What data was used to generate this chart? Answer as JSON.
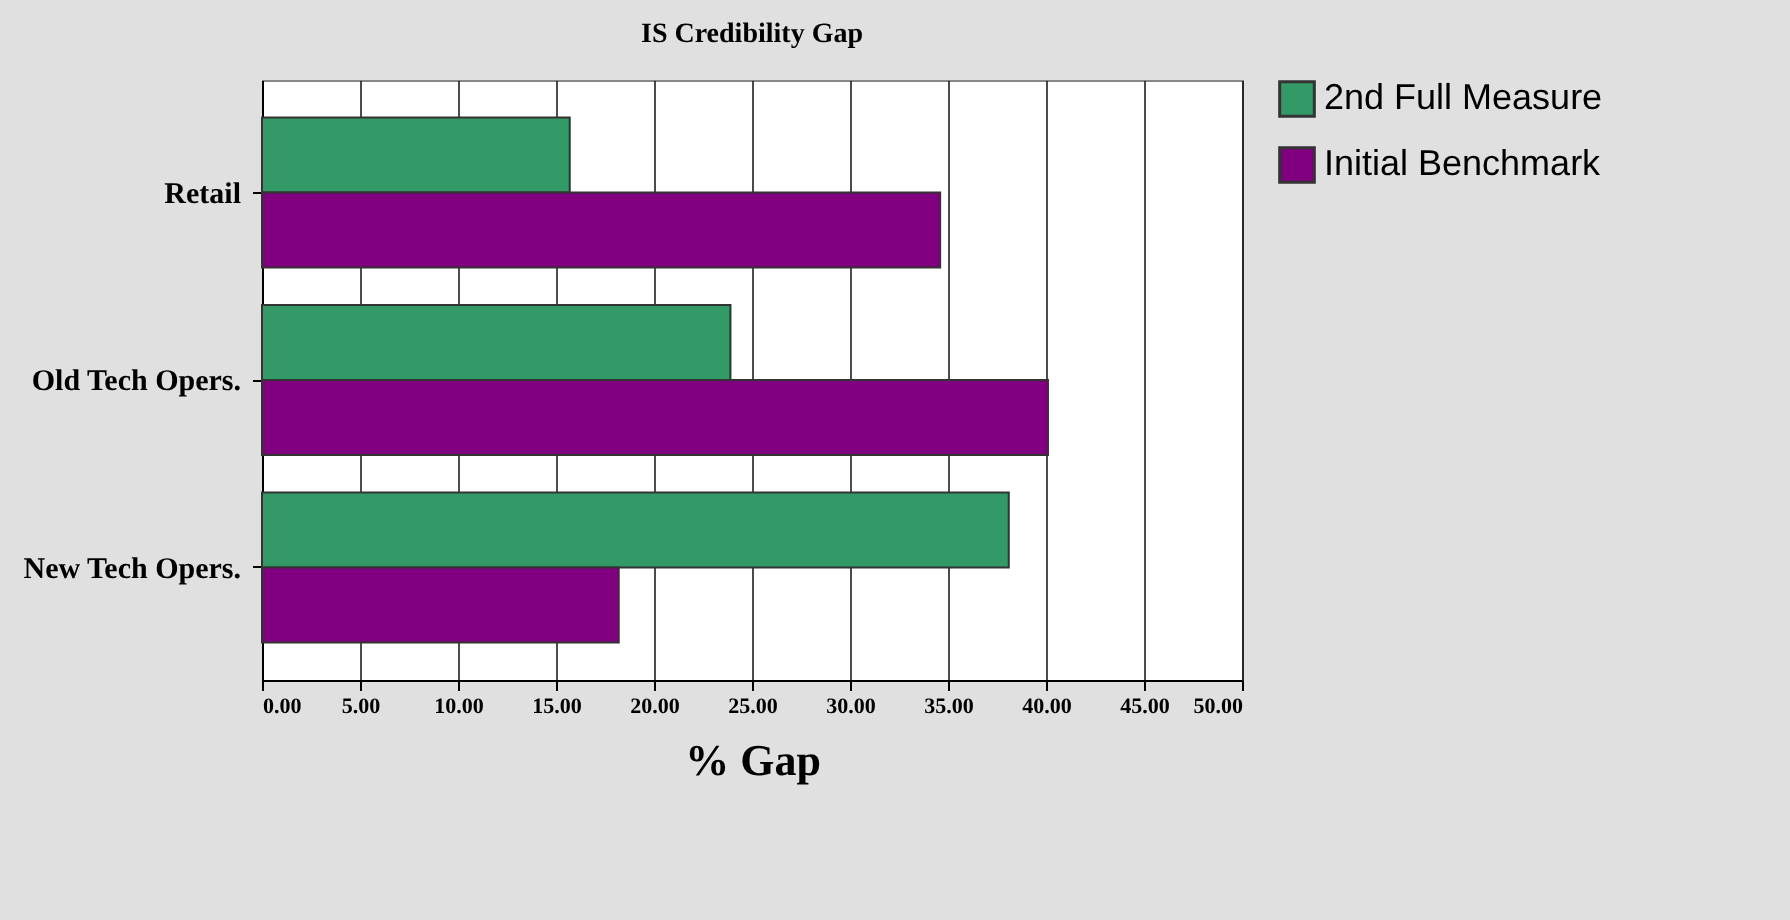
{
  "chart_data": {
    "type": "bar",
    "orientation": "horizontal",
    "title": "IS Credibility Gap",
    "xlabel": "% Gap",
    "categories": [
      "Retail",
      "Old Tech Opers.",
      "New Tech Opers."
    ],
    "series": [
      {
        "name": "2nd Full Measure",
        "color": "#339966",
        "values": [
          15.7,
          23.9,
          38.1
        ]
      },
      {
        "name": "Initial Benchmark",
        "color": "#800080",
        "values": [
          34.6,
          40.1,
          18.2
        ]
      }
    ],
    "xlim": [
      0,
      50
    ],
    "xticks": [
      {
        "value": 0,
        "label": "0.00"
      },
      {
        "value": 5,
        "label": "5.00"
      },
      {
        "value": 10,
        "label": "10.00"
      },
      {
        "value": 15,
        "label": "15.00"
      },
      {
        "value": 20,
        "label": "20.00"
      },
      {
        "value": 25,
        "label": "25.00"
      },
      {
        "value": 30,
        "label": "30.00"
      },
      {
        "value": 35,
        "label": "35.00"
      },
      {
        "value": 40,
        "label": "40.00"
      },
      {
        "value": 45,
        "label": "45.00"
      },
      {
        "value": 50,
        "label": "50.00"
      }
    ],
    "grid": "x",
    "legend": "right"
  }
}
